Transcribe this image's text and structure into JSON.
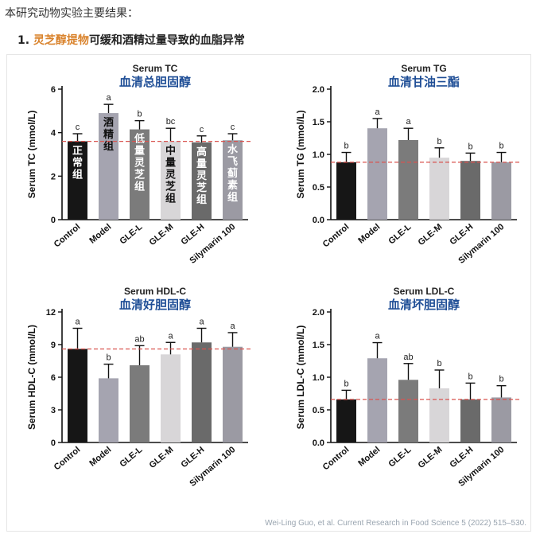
{
  "intro": "本研究动物实验主要结果：",
  "heading": {
    "number": "1.",
    "highlight": "灵芝醇提物",
    "rest": "可缓和酒精过量导致的血脂异常"
  },
  "citation": "Wei-Ling Guo, et al. Current Research in Food Science 5 (2022) 515–530.",
  "colors": {
    "bars": [
      "#161616",
      "#a5a4b0",
      "#7b7b7b",
      "#d8d6d8",
      "#6a6a6a",
      "#9b9aa3"
    ],
    "dashed_line": "#d9534f",
    "title_cn": "#1f4e96",
    "heading_highlight": "#d9822b"
  },
  "chart_data": [
    {
      "type": "bar",
      "title": "Serum TC",
      "subtitle": "血清总胆固醇",
      "ylabel": "Serum TC (mmol/L)",
      "ylim": [
        0,
        6
      ],
      "yticks": [
        "0",
        "2",
        "4",
        "6"
      ],
      "categories": [
        "Control",
        "Model",
        "GLE-L",
        "GLE-M",
        "GLE-H",
        "Silymarin 100"
      ],
      "values": [
        3.6,
        4.9,
        4.15,
        3.6,
        3.55,
        3.65
      ],
      "errors": [
        0.35,
        0.4,
        0.4,
        0.6,
        0.3,
        0.3
      ],
      "significance": [
        "c",
        "a",
        "b",
        "bc",
        "c",
        "c"
      ],
      "reference_line": 3.6,
      "bar_labels": [
        "正常组",
        "酒精组",
        "低量灵芝组",
        "中量灵芝组",
        "高量灵芝组",
        "水飞蓟素组"
      ]
    },
    {
      "type": "bar",
      "title": "Serum TG",
      "subtitle": "血清甘油三酯",
      "ylabel": "Serum TG (mmol/L)",
      "ylim": [
        0,
        2
      ],
      "yticks": [
        "0.0",
        "0.5",
        "1.0",
        "1.5",
        "2.0"
      ],
      "categories": [
        "Control",
        "Model",
        "GLE-L",
        "GLE-M",
        "GLE-H",
        "Silymarin 100"
      ],
      "values": [
        0.88,
        1.4,
        1.22,
        0.95,
        0.9,
        0.88
      ],
      "errors": [
        0.15,
        0.15,
        0.18,
        0.15,
        0.12,
        0.15
      ],
      "significance": [
        "b",
        "a",
        "a",
        "b",
        "b",
        "b"
      ],
      "reference_line": 0.88,
      "bar_labels": []
    },
    {
      "type": "bar",
      "title": "Serum HDL-C",
      "subtitle": "血清好胆固醇",
      "ylabel": "Serum HDL-C (mmol/L)",
      "ylim": [
        0,
        12
      ],
      "yticks": [
        "0",
        "3",
        "6",
        "9",
        "12"
      ],
      "categories": [
        "Control",
        "Model",
        "GLE-L",
        "GLE-M",
        "GLE-H",
        "Silymarin 100"
      ],
      "values": [
        8.6,
        5.9,
        7.1,
        8.1,
        9.2,
        8.8
      ],
      "errors": [
        1.9,
        1.3,
        1.8,
        1.1,
        1.3,
        1.3
      ],
      "significance": [
        "a",
        "b",
        "ab",
        "a",
        "a",
        "a"
      ],
      "reference_line": 8.6,
      "bar_labels": []
    },
    {
      "type": "bar",
      "title": "Serum LDL-C",
      "subtitle": "血清坏胆固醇",
      "ylabel": "Serum LDL-C (mmol/L)",
      "ylim": [
        0,
        2
      ],
      "yticks": [
        "0.0",
        "0.5",
        "1.0",
        "1.5",
        "2.0"
      ],
      "categories": [
        "Control",
        "Model",
        "GLE-L",
        "GLE-M",
        "GLE-H",
        "Silymarin 100"
      ],
      "values": [
        0.66,
        1.29,
        0.96,
        0.83,
        0.66,
        0.69
      ],
      "errors": [
        0.14,
        0.24,
        0.25,
        0.28,
        0.25,
        0.18
      ],
      "significance": [
        "b",
        "a",
        "ab",
        "b",
        "b",
        "b"
      ],
      "reference_line": 0.66,
      "bar_labels": []
    }
  ]
}
